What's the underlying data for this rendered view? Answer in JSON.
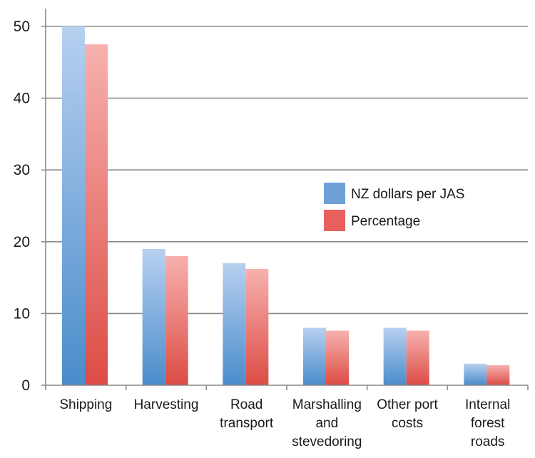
{
  "chart_data": {
    "type": "bar",
    "title": "",
    "xlabel": "",
    "ylabel": "",
    "ylim": [
      0,
      50
    ],
    "yticks": [
      0,
      10,
      20,
      30,
      40,
      50
    ],
    "grid": true,
    "legend_position": "right-middle",
    "categories": [
      [
        "Shipping"
      ],
      [
        "Harvesting"
      ],
      [
        "Road",
        "transport"
      ],
      [
        "Marshalling",
        "and",
        "stevedoring"
      ],
      [
        "Other port",
        "costs"
      ],
      [
        "Internal",
        "forest",
        "roads"
      ]
    ],
    "series": [
      {
        "name": "NZ dollars per JAS",
        "values": [
          50,
          19,
          17,
          8,
          8,
          3
        ],
        "color_top": "#b7d0f0",
        "color_bottom": "#4a8ccb",
        "legend_color": "#6fa1d8"
      },
      {
        "name": "Percentage",
        "values": [
          47.5,
          18,
          16.2,
          7.6,
          7.6,
          2.8
        ],
        "color_top": "#f7b1ae",
        "color_bottom": "#dc4c45",
        "legend_color": "#e8605b"
      }
    ]
  }
}
